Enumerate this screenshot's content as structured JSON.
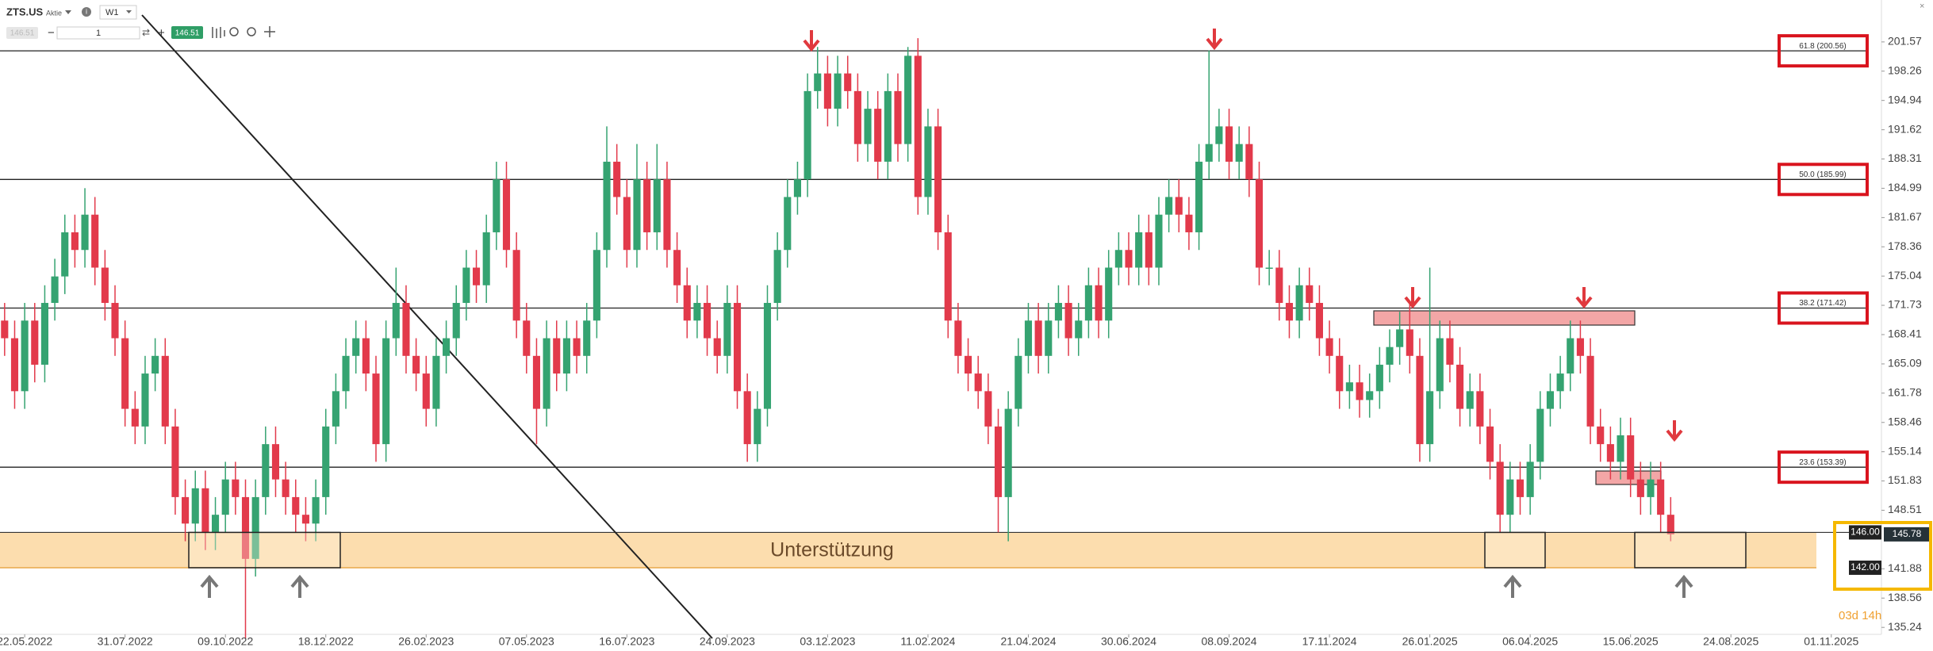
{
  "toolbar": {
    "symbol": "ZTS.US",
    "asset_type": "Aktie",
    "timeframe": "W1",
    "quantity": 1,
    "bid": 146.51,
    "ask": 146.51
  },
  "timer": "03d 14h",
  "chart_data": {
    "type": "candlestick",
    "up_color": "#35a371",
    "down_color": "#e23a4b",
    "grid": false,
    "open": [
      170,
      168,
      162,
      170,
      165,
      172,
      175,
      180,
      178,
      182,
      176,
      172,
      168,
      160,
      158,
      164,
      166,
      158,
      150,
      147,
      151,
      146,
      148,
      152,
      150,
      143,
      150,
      156,
      152,
      150,
      148,
      147,
      150,
      158,
      162,
      166,
      168,
      164,
      156,
      168,
      172,
      166,
      164,
      160,
      166,
      168,
      172,
      176,
      174,
      180,
      186,
      178,
      170,
      166,
      160,
      168,
      164,
      168,
      166,
      170,
      178,
      188,
      184,
      178,
      186,
      180,
      186,
      178,
      174,
      170,
      172,
      168,
      166,
      172,
      162,
      156,
      160,
      172,
      178,
      184,
      186,
      196,
      198,
      194,
      198,
      196,
      190,
      194,
      188,
      196,
      190,
      200,
      184,
      192,
      180,
      170,
      166,
      164,
      162,
      158,
      150,
      160,
      166,
      170,
      166,
      170,
      172,
      168,
      170,
      174,
      170,
      176,
      178,
      176,
      180,
      176,
      182,
      184,
      182,
      180,
      188,
      190,
      192,
      188,
      190,
      186,
      176,
      176,
      172,
      170,
      174,
      172,
      168,
      166,
      162,
      163,
      161,
      162,
      165,
      167,
      169,
      166,
      156,
      162,
      168,
      165,
      160,
      162,
      158,
      154,
      148,
      152,
      150,
      154,
      160,
      162,
      164,
      168,
      166,
      158,
      156,
      154,
      157,
      152,
      150,
      152,
      148
    ],
    "high": [
      172,
      170,
      172,
      172,
      174,
      177,
      182,
      182,
      185,
      184,
      178,
      174,
      170,
      162,
      166,
      168,
      168,
      160,
      152,
      153,
      153,
      150,
      154,
      154,
      152,
      152,
      158,
      158,
      154,
      152,
      150,
      152,
      160,
      164,
      168,
      170,
      170,
      166,
      170,
      176,
      174,
      168,
      166,
      168,
      170,
      174,
      178,
      178,
      182,
      188,
      188,
      180,
      172,
      168,
      170,
      170,
      170,
      170,
      172,
      180,
      192,
      190,
      186,
      190,
      188,
      190,
      188,
      180,
      176,
      174,
      174,
      170,
      174,
      174,
      164,
      162,
      174,
      180,
      186,
      188,
      198,
      201,
      200,
      200,
      200,
      198,
      196,
      196,
      198,
      198,
      201,
      202,
      194,
      194,
      182,
      172,
      168,
      166,
      164,
      160,
      162,
      168,
      172,
      172,
      172,
      174,
      174,
      172,
      176,
      176,
      178,
      180,
      180,
      182,
      182,
      184,
      186,
      186,
      184,
      190,
      200.6,
      194,
      194,
      192,
      192,
      188,
      178,
      178,
      174,
      176,
      176,
      174,
      170,
      168,
      165,
      165,
      164,
      167,
      169,
      171,
      172,
      168,
      176,
      170,
      170,
      167,
      164,
      164,
      160,
      156,
      154,
      154,
      156,
      162,
      164,
      166,
      170,
      170,
      168,
      160,
      158,
      159,
      159,
      154,
      154,
      154,
      150
    ],
    "low": [
      166,
      160,
      160,
      163,
      163,
      170,
      173,
      176,
      176,
      174,
      170,
      166,
      158,
      156,
      156,
      162,
      156,
      148,
      145,
      145,
      144,
      144,
      146,
      148,
      134,
      141,
      148,
      150,
      148,
      146,
      145,
      145,
      148,
      156,
      160,
      164,
      162,
      154,
      154,
      166,
      164,
      162,
      158,
      158,
      164,
      166,
      170,
      172,
      172,
      178,
      176,
      168,
      164,
      156,
      158,
      162,
      162,
      164,
      164,
      168,
      176,
      182,
      176,
      176,
      178,
      178,
      176,
      172,
      168,
      168,
      166,
      164,
      164,
      160,
      154,
      154,
      158,
      170,
      176,
      182,
      184,
      194,
      192,
      192,
      194,
      188,
      188,
      186,
      186,
      188,
      188,
      182,
      182,
      178,
      168,
      164,
      162,
      160,
      156,
      146,
      145,
      158,
      164,
      164,
      164,
      168,
      166,
      166,
      168,
      168,
      168,
      174,
      174,
      174,
      174,
      174,
      180,
      180,
      178,
      178,
      186,
      188,
      186,
      186,
      184,
      174,
      174,
      170,
      168,
      168,
      170,
      166,
      164,
      160,
      160,
      159,
      159,
      160,
      163,
      165,
      164,
      154,
      154,
      160,
      163,
      158,
      158,
      156,
      152,
      146,
      146,
      148,
      148,
      152,
      158,
      160,
      162,
      164,
      156,
      154,
      152,
      152,
      150,
      148,
      148,
      146,
      145
    ],
    "close": [
      168,
      162,
      170,
      165,
      172,
      175,
      180,
      178,
      182,
      176,
      172,
      168,
      160,
      158,
      164,
      166,
      158,
      150,
      147,
      151,
      146,
      148,
      152,
      150,
      143,
      150,
      156,
      152,
      150,
      148,
      147,
      150,
      158,
      162,
      166,
      168,
      164,
      156,
      168,
      172,
      166,
      164,
      160,
      166,
      168,
      172,
      176,
      174,
      180,
      186,
      178,
      170,
      166,
      160,
      168,
      164,
      168,
      166,
      170,
      178,
      188,
      184,
      178,
      186,
      180,
      186,
      178,
      174,
      170,
      172,
      168,
      166,
      172,
      162,
      156,
      160,
      172,
      178,
      184,
      186,
      196,
      198,
      194,
      198,
      196,
      190,
      194,
      188,
      196,
      190,
      200,
      184,
      192,
      180,
      170,
      166,
      164,
      162,
      158,
      150,
      160,
      166,
      170,
      166,
      170,
      172,
      168,
      170,
      174,
      170,
      176,
      178,
      176,
      180,
      176,
      182,
      184,
      182,
      180,
      188,
      190,
      192,
      188,
      190,
      186,
      176,
      176,
      172,
      170,
      174,
      172,
      168,
      166,
      162,
      163,
      161,
      162,
      165,
      167,
      169,
      166,
      156,
      162,
      168,
      165,
      160,
      162,
      158,
      154,
      148,
      152,
      150,
      154,
      160,
      162,
      164,
      168,
      166,
      158,
      156,
      154,
      157,
      152,
      150,
      152,
      148,
      145.78
    ],
    "xlim": [
      -0.46,
      186.84
    ],
    "xticks": [
      {
        "value": 2,
        "label": "22.05.2022"
      },
      {
        "value": 12,
        "label": "31.07.2022"
      },
      {
        "value": 22,
        "label": "09.10.2022"
      },
      {
        "value": 32,
        "label": "18.12.2022"
      },
      {
        "value": 42,
        "label": "26.02.2023"
      },
      {
        "value": 52,
        "label": "07.05.2023"
      },
      {
        "value": 62,
        "label": "16.07.2023"
      },
      {
        "value": 72,
        "label": "24.09.2023"
      },
      {
        "value": 82,
        "label": "03.12.2023"
      },
      {
        "value": 92,
        "label": "11.02.2024"
      },
      {
        "value": 102,
        "label": "21.04.2024"
      },
      {
        "value": 112,
        "label": "30.06.2024"
      },
      {
        "value": 122,
        "label": "08.09.2024"
      },
      {
        "value": 132,
        "label": "17.11.2024"
      },
      {
        "value": 142,
        "label": "26.01.2025"
      },
      {
        "value": 152,
        "label": "06.04.2025"
      },
      {
        "value": 162,
        "label": "15.06.2025"
      },
      {
        "value": 172,
        "label": "24.08.2025"
      },
      {
        "value": 182,
        "label": "01.11.2025"
      }
    ],
    "ylim": [
      134.45,
      206.32
    ],
    "yticks": [
      201.57,
      198.26,
      194.94,
      191.62,
      188.31,
      184.99,
      181.67,
      178.36,
      175.04,
      171.73,
      168.41,
      165.09,
      161.78,
      158.46,
      155.14,
      151.83,
      148.51,
      141.88,
      138.56,
      135.24
    ],
    "fib_levels": [
      {
        "value": 200.56,
        "label": "61.8 (200.56)"
      },
      {
        "value": 185.99,
        "label": "50.0 (185.99)"
      },
      {
        "value": 171.42,
        "label": "38.2 (171.42)"
      },
      {
        "value": 153.39,
        "label": "23.6 (153.39)"
      }
    ],
    "support": {
      "label": "Unterstützung",
      "top": {
        "value": 146,
        "label": "146.00"
      },
      "bottom": {
        "value": 142,
        "label": "142.00"
      }
    },
    "last_price": {
      "value": 145.78,
      "label": "145.78"
    }
  }
}
